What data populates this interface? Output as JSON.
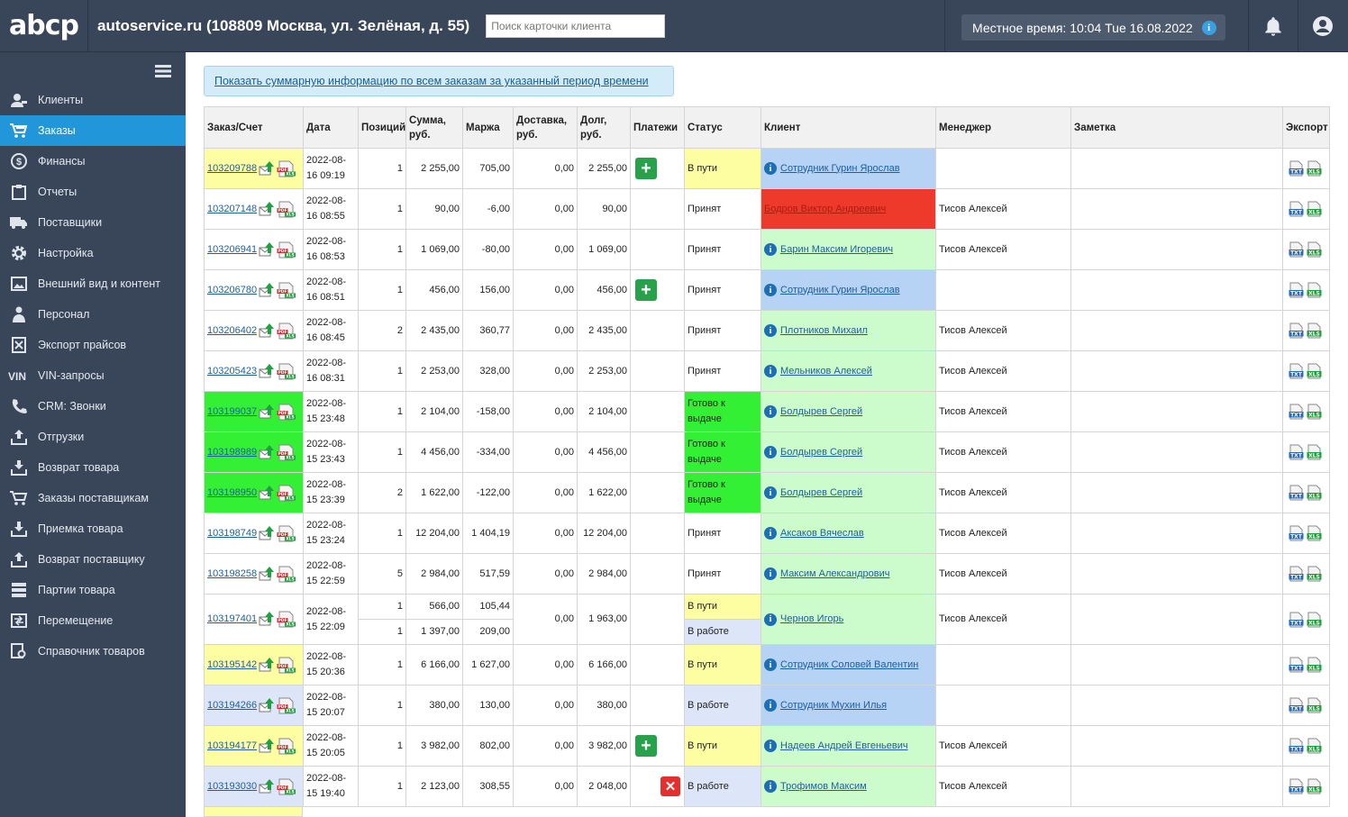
{
  "app": {
    "logo": "abcp",
    "company": "autoservice.ru (108809 Москва, ул. Зелёная, д. 55)",
    "search_placeholder": "Поиск карточки клиента",
    "clock": "Местное время: 10:04 Tue 16.08.2022",
    "clock_info": "i"
  },
  "sidebar": {
    "items": [
      {
        "label": "Клиенты",
        "icon": "clients-icon"
      },
      {
        "label": "Заказы",
        "icon": "cart-icon",
        "active": true
      },
      {
        "label": "Финансы",
        "icon": "dollar-icon"
      },
      {
        "label": "Отчеты",
        "icon": "clipboard-icon"
      },
      {
        "label": "Поставщики",
        "icon": "truck-icon"
      },
      {
        "label": "Настройка",
        "icon": "gear-icon"
      },
      {
        "label": "Внешний вид и контент",
        "icon": "image-icon"
      },
      {
        "label": "Персонал",
        "icon": "person-icon"
      },
      {
        "label": "Экспорт прайсов",
        "icon": "excel-icon"
      },
      {
        "label": "VIN-запросы",
        "icon": "vin-icon"
      },
      {
        "label": "CRM: Звонки",
        "icon": "phone-icon"
      },
      {
        "label": "Отгрузки",
        "icon": "upload-icon"
      },
      {
        "label": "Возврат товара",
        "icon": "return-icon"
      },
      {
        "label": "Заказы поставщикам",
        "icon": "supplier-cart-icon"
      },
      {
        "label": "Приемка товара",
        "icon": "download-icon"
      },
      {
        "label": "Возврат поставщику",
        "icon": "supplier-return-icon"
      },
      {
        "label": "Партии товара",
        "icon": "stack-icon"
      },
      {
        "label": "Перемещение",
        "icon": "move-icon"
      },
      {
        "label": "Справочник товаров",
        "icon": "catalog-icon"
      }
    ]
  },
  "banner": "Показать суммарную информацию по всем заказам за указанный период времени",
  "table": {
    "headers": {
      "order": "Заказ/Счет",
      "date": "Дата",
      "positions": "Позиций",
      "sum": "Сумма, руб.",
      "margin": "Маржа",
      "delivery": "Доставка, руб.",
      "debt": "Долг, руб.",
      "payments": "Платежи",
      "status": "Статус",
      "client": "Клиент",
      "manager": "Менеджер",
      "note": "Заметка",
      "export": "Экспорт"
    },
    "rows": [
      {
        "order": "103209788",
        "bg": "y",
        "date": "2022-08-16 09:19",
        "pos": "1",
        "sum": "2 255,00",
        "margin": "705,00",
        "delivery": "0,00",
        "debt": "2 255,00",
        "pay": "plus",
        "status": "В пути",
        "st": "y",
        "client": "Сотрудник Гурин Ярослав",
        "cl": "b",
        "manager": ""
      },
      {
        "order": "103207148",
        "bg": "w",
        "date": "2022-08-16 08:55",
        "pos": "1",
        "sum": "90,00",
        "margin": "-6,00",
        "delivery": "0,00",
        "debt": "90,00",
        "pay": "",
        "status": "Принят",
        "st": "w",
        "client": "Бодров Виктор Андреевич",
        "cl": "r",
        "manager": "Тисов Алексей"
      },
      {
        "order": "103206941",
        "bg": "w",
        "date": "2022-08-16 08:53",
        "pos": "1",
        "sum": "1 069,00",
        "margin": "-80,00",
        "delivery": "0,00",
        "debt": "1 069,00",
        "pay": "",
        "status": "Принят",
        "st": "w",
        "client": "Барин Максим Игоревич",
        "cl": "lg",
        "manager": "Тисов Алексей"
      },
      {
        "order": "103206780",
        "bg": "w",
        "date": "2022-08-16 08:51",
        "pos": "1",
        "sum": "456,00",
        "margin": "156,00",
        "delivery": "0,00",
        "debt": "456,00",
        "pay": "plus",
        "status": "Принят",
        "st": "w",
        "client": "Сотрудник Гурин Ярослав",
        "cl": "b",
        "manager": ""
      },
      {
        "order": "103206402",
        "bg": "w",
        "date": "2022-08-16 08:45",
        "pos": "2",
        "sum": "2 435,00",
        "margin": "360,77",
        "delivery": "0,00",
        "debt": "2 435,00",
        "pay": "",
        "status": "Принят",
        "st": "w",
        "client": "Плотников Михаил",
        "cl": "lg",
        "manager": "Тисов Алексей"
      },
      {
        "order": "103205423",
        "bg": "w",
        "date": "2022-08-16 08:31",
        "pos": "1",
        "sum": "2 253,00",
        "margin": "328,00",
        "delivery": "0,00",
        "debt": "2 253,00",
        "pay": "",
        "status": "Принят",
        "st": "w",
        "client": "Мельников Алексей",
        "cl": "lg",
        "manager": "Тисов Алексей"
      },
      {
        "order": "103199037",
        "bg": "g",
        "date": "2022-08-15 23:48",
        "pos": "1",
        "sum": "2 104,00",
        "margin": "-158,00",
        "delivery": "0,00",
        "debt": "2 104,00",
        "pay": "",
        "status": "Готово к выдаче",
        "st": "g",
        "client": "Болдырев Сергей",
        "cl": "lg",
        "manager": "Тисов Алексей"
      },
      {
        "order": "103198989",
        "bg": "g",
        "date": "2022-08-15 23:43",
        "pos": "1",
        "sum": "4 456,00",
        "margin": "-334,00",
        "delivery": "0,00",
        "debt": "4 456,00",
        "pay": "",
        "status": "Готово к выдаче",
        "st": "g",
        "client": "Болдырев Сергей",
        "cl": "lg",
        "manager": "Тисов Алексей"
      },
      {
        "order": "103198950",
        "bg": "g",
        "date": "2022-08-15 23:39",
        "pos": "2",
        "sum": "1 622,00",
        "margin": "-122,00",
        "delivery": "0,00",
        "debt": "1 622,00",
        "pay": "",
        "status": "Готово к выдаче",
        "st": "g",
        "client": "Болдырев Сергей",
        "cl": "lg",
        "manager": "Тисов Алексей"
      },
      {
        "order": "103198749",
        "bg": "w",
        "date": "2022-08-15 23:24",
        "pos": "1",
        "sum": "12 204,00",
        "margin": "1 404,19",
        "delivery": "0,00",
        "debt": "12 204,00",
        "pay": "",
        "status": "Принят",
        "st": "w",
        "client": "Аксаков Вячеслав",
        "cl": "lg",
        "manager": "Тисов Алексей"
      },
      {
        "order": "103198258",
        "bg": "w",
        "date": "2022-08-15 22:59",
        "pos": "5",
        "sum": "2 984,00",
        "margin": "517,59",
        "delivery": "0,00",
        "debt": "2 984,00",
        "pay": "",
        "status": "Принят",
        "st": "w",
        "client": "Максим Александрович",
        "cl": "lg",
        "manager": "Тисов Алексей"
      },
      {
        "order": "103197401",
        "bg": "w",
        "date": "2022-08-15 22:09",
        "split": [
          {
            "pos": "1",
            "sum": "566,00",
            "margin": "105,44",
            "status": "В пути",
            "st": "y"
          },
          {
            "pos": "1",
            "sum": "1 397,00",
            "margin": "209,00",
            "status": "В работе",
            "st": "lb"
          }
        ],
        "delivery": "0,00",
        "debt": "1 963,00",
        "pay": "",
        "client": "Чернов Игорь",
        "cl": "lg",
        "manager": "Тисов Алексей"
      },
      {
        "order": "103195142",
        "bg": "y",
        "date": "2022-08-15 20:36",
        "pos": "1",
        "sum": "6 166,00",
        "margin": "1 627,00",
        "delivery": "0,00",
        "debt": "6 166,00",
        "pay": "",
        "status": "В пути",
        "st": "y",
        "client": "Сотрудник Соловей Валентин",
        "cl": "b",
        "manager": ""
      },
      {
        "order": "103194266",
        "bg": "lb",
        "date": "2022-08-15 20:07",
        "pos": "1",
        "sum": "380,00",
        "margin": "130,00",
        "delivery": "0,00",
        "debt": "380,00",
        "pay": "",
        "status": "В работе",
        "st": "lb",
        "client": "Сотрудник Мухин Илья",
        "cl": "b",
        "manager": ""
      },
      {
        "order": "103194177",
        "bg": "y",
        "date": "2022-08-15 20:05",
        "pos": "1",
        "sum": "3 982,00",
        "margin": "802,00",
        "delivery": "0,00",
        "debt": "3 982,00",
        "pay": "plus",
        "status": "В пути",
        "st": "y",
        "client": "Надеев Андрей Евгеньевич",
        "cl": "lg",
        "manager": "Тисов Алексей"
      },
      {
        "order": "103193030",
        "bg": "lb",
        "date": "2022-08-15 19:40",
        "pos": "1",
        "sum": "2 123,00",
        "margin": "308,55",
        "delivery": "0,00",
        "debt": "2 048,00",
        "pay": "x",
        "status": "В работе",
        "st": "lb",
        "client": "Трофимов Максим",
        "cl": "lg",
        "manager": "Тисов Алексей"
      }
    ]
  },
  "icons": {
    "pdf": "PDF",
    "xls": "XLS",
    "txt": "TXT",
    "plus": "+",
    "cross": "✕",
    "info": "i"
  },
  "colors": {
    "topbar": "#39465a",
    "active_nav": "#2196d8",
    "yellow": "#fdfda2",
    "green": "#34f034",
    "blue": "#b6d2f5",
    "light_green": "#ccfbcc",
    "red": "#ee3a2a",
    "light_blue": "#dde5f8"
  }
}
